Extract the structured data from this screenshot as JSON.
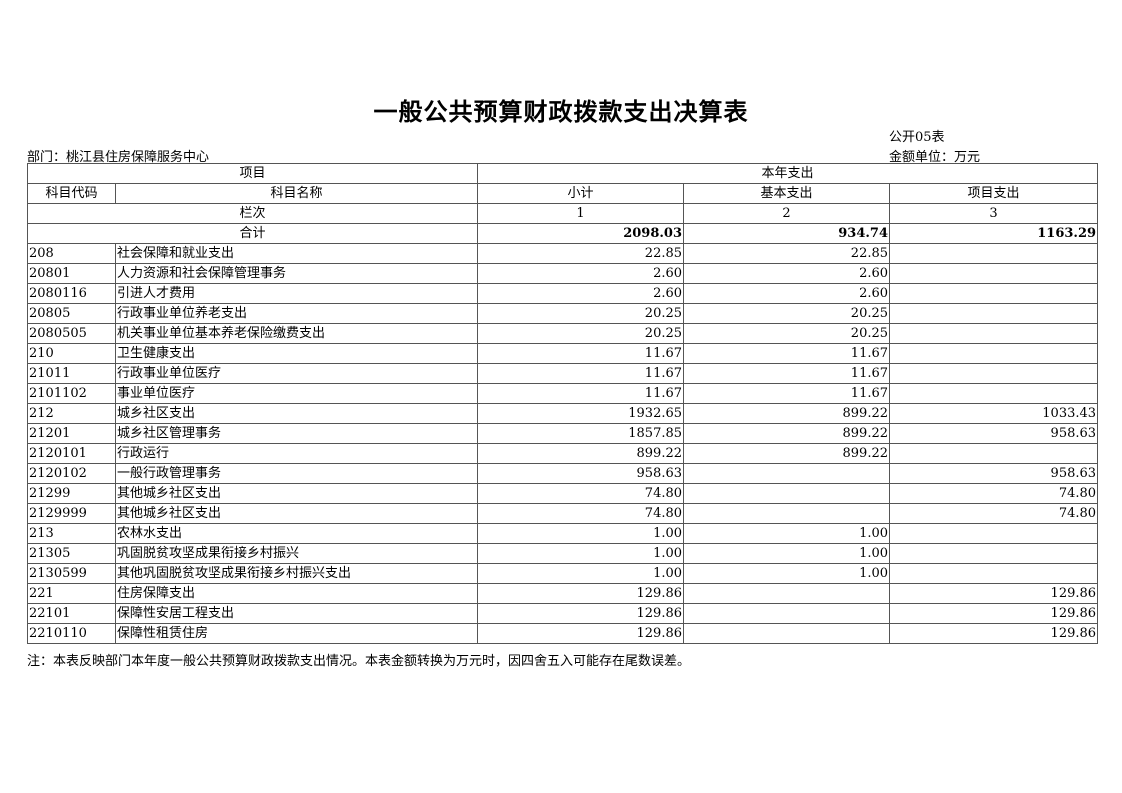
{
  "title": "一般公共预算财政拨款支出决算表",
  "table_no": "公开05表",
  "department": "部门：桃江县住房保障服务中心",
  "unit": "金额单位：万元",
  "headers": {
    "item": "项目",
    "current_year": "本年支出",
    "code": "科目代码",
    "name": "科目名称",
    "subtotal": "小计",
    "basic": "基本支出",
    "project": "项目支出",
    "column_index": "栏次",
    "col1": "1",
    "col2": "2",
    "col3": "3"
  },
  "total": {
    "label": "合计",
    "subtotal": "2098.03",
    "basic": "934.74",
    "project": "1163.29"
  },
  "rows": [
    {
      "code": "208",
      "name": "社会保障和就业支出",
      "subtotal": "22.85",
      "basic": "22.85",
      "project": ""
    },
    {
      "code": "20801",
      "name": "人力资源和社会保障管理事务",
      "subtotal": "2.60",
      "basic": "2.60",
      "project": ""
    },
    {
      "code": "2080116",
      "name": "引进人才费用",
      "subtotal": "2.60",
      "basic": "2.60",
      "project": ""
    },
    {
      "code": "20805",
      "name": "行政事业单位养老支出",
      "subtotal": "20.25",
      "basic": "20.25",
      "project": ""
    },
    {
      "code": "2080505",
      "name": "机关事业单位基本养老保险缴费支出",
      "subtotal": "20.25",
      "basic": "20.25",
      "project": ""
    },
    {
      "code": "210",
      "name": "卫生健康支出",
      "subtotal": "11.67",
      "basic": "11.67",
      "project": ""
    },
    {
      "code": "21011",
      "name": "行政事业单位医疗",
      "subtotal": "11.67",
      "basic": "11.67",
      "project": ""
    },
    {
      "code": "2101102",
      "name": "事业单位医疗",
      "subtotal": "11.67",
      "basic": "11.67",
      "project": ""
    },
    {
      "code": "212",
      "name": "城乡社区支出",
      "subtotal": "1932.65",
      "basic": "899.22",
      "project": "1033.43"
    },
    {
      "code": "21201",
      "name": "城乡社区管理事务",
      "subtotal": "1857.85",
      "basic": "899.22",
      "project": "958.63"
    },
    {
      "code": "2120101",
      "name": "行政运行",
      "subtotal": "899.22",
      "basic": "899.22",
      "project": ""
    },
    {
      "code": "2120102",
      "name": "一般行政管理事务",
      "subtotal": "958.63",
      "basic": "",
      "project": "958.63"
    },
    {
      "code": "21299",
      "name": "其他城乡社区支出",
      "subtotal": "74.80",
      "basic": "",
      "project": "74.80"
    },
    {
      "code": "2129999",
      "name": "其他城乡社区支出",
      "subtotal": "74.80",
      "basic": "",
      "project": "74.80"
    },
    {
      "code": "213",
      "name": "农林水支出",
      "subtotal": "1.00",
      "basic": "1.00",
      "project": ""
    },
    {
      "code": "21305",
      "name": "巩固脱贫攻坚成果衔接乡村振兴",
      "subtotal": "1.00",
      "basic": "1.00",
      "project": ""
    },
    {
      "code": "2130599",
      "name": "其他巩固脱贫攻坚成果衔接乡村振兴支出",
      "subtotal": "1.00",
      "basic": "1.00",
      "project": ""
    },
    {
      "code": "221",
      "name": "住房保障支出",
      "subtotal": "129.86",
      "basic": "",
      "project": "129.86"
    },
    {
      "code": "22101",
      "name": "保障性安居工程支出",
      "subtotal": "129.86",
      "basic": "",
      "project": "129.86"
    },
    {
      "code": "2210110",
      "name": "保障性租赁住房",
      "subtotal": "129.86",
      "basic": "",
      "project": "129.86"
    }
  ],
  "note": "注：本表反映部门本年度一般公共预算财政拨款支出情况。本表金额转换为万元时，因四舍五入可能存在尾数误差。"
}
